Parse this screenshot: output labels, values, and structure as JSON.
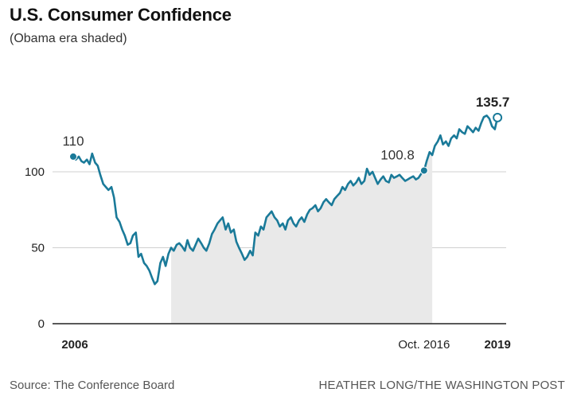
{
  "header": {
    "title": "U.S. Consumer Confidence",
    "subtitle": "(Obama era shaded)"
  },
  "footer": {
    "source": "Source: The Conference Board",
    "credit": "HEATHER LONG/THE WASHINGTON POST"
  },
  "colors": {
    "line": "#1a7a99",
    "shade": "#e9e9e9",
    "grid": "#d0d0d0",
    "axis": "#222222"
  },
  "chart_data": {
    "type": "area",
    "title": "U.S. Consumer Confidence",
    "subtitle": "(Obama era shaded)",
    "xlabel": "",
    "ylabel": "",
    "ylim": [
      0,
      145
    ],
    "xlim": [
      2006.0,
      2019.5
    ],
    "yticks": [
      0,
      50,
      100
    ],
    "xticks": [
      {
        "value": 2006.0,
        "label": "2006",
        "bold": true
      },
      {
        "value": 2016.75,
        "label": "Oct. 2016",
        "bold": false
      },
      {
        "value": 2019.0,
        "label": "2019",
        "bold": true
      }
    ],
    "grid": true,
    "shaded_range": [
      2009.0,
      2017.0
    ],
    "annotations": [
      {
        "x": 2006.0,
        "y": 110,
        "label": "110",
        "marker": "filled",
        "bold": false,
        "pos": "above"
      },
      {
        "x": 2016.75,
        "y": 100.8,
        "label": "100.8",
        "marker": "filled",
        "bold": false,
        "pos": "left"
      },
      {
        "x": 2019.0,
        "y": 135.7,
        "label": "135.7",
        "marker": "hollow",
        "bold": true,
        "pos": "above"
      }
    ],
    "series": [
      {
        "x": [
          2006.0,
          2006.08,
          2006.17,
          2006.25,
          2006.33,
          2006.42,
          2006.5,
          2006.58,
          2006.67,
          2006.75,
          2006.83,
          2006.92,
          2007.0,
          2007.08,
          2007.17,
          2007.25,
          2007.33,
          2007.42,
          2007.5,
          2007.58,
          2007.67,
          2007.75,
          2007.83,
          2007.92,
          2008.0,
          2008.08,
          2008.17,
          2008.25,
          2008.33,
          2008.42,
          2008.5,
          2008.58,
          2008.67,
          2008.75,
          2008.83,
          2008.92,
          2009.0,
          2009.08,
          2009.17,
          2009.25,
          2009.33,
          2009.42,
          2009.5,
          2009.58,
          2009.67,
          2009.75,
          2009.83,
          2009.92,
          2010.0,
          2010.08,
          2010.17,
          2010.25,
          2010.33,
          2010.42,
          2010.5,
          2010.58,
          2010.67,
          2010.75,
          2010.83,
          2010.92,
          2011.0,
          2011.08,
          2011.17,
          2011.25,
          2011.33,
          2011.42,
          2011.5,
          2011.58,
          2011.67,
          2011.75,
          2011.83,
          2011.92,
          2012.0,
          2012.08,
          2012.17,
          2012.25,
          2012.33,
          2012.42,
          2012.5,
          2012.58,
          2012.67,
          2012.75,
          2012.83,
          2012.92,
          2013.0,
          2013.08,
          2013.17,
          2013.25,
          2013.33,
          2013.42,
          2013.5,
          2013.58,
          2013.67,
          2013.75,
          2013.83,
          2013.92,
          2014.0,
          2014.08,
          2014.17,
          2014.25,
          2014.33,
          2014.42,
          2014.5,
          2014.58,
          2014.67,
          2014.75,
          2014.83,
          2014.92,
          2015.0,
          2015.08,
          2015.17,
          2015.25,
          2015.33,
          2015.42,
          2015.5,
          2015.58,
          2015.67,
          2015.75,
          2015.83,
          2015.92,
          2016.0,
          2016.08,
          2016.17,
          2016.25,
          2016.33,
          2016.42,
          2016.5,
          2016.58,
          2016.67,
          2016.75,
          2016.83,
          2016.92,
          2017.0,
          2017.08,
          2017.17,
          2017.25,
          2017.33,
          2017.42,
          2017.5,
          2017.58,
          2017.67,
          2017.75,
          2017.83,
          2017.92,
          2018.0,
          2018.08,
          2018.17,
          2018.25,
          2018.33,
          2018.42,
          2018.5,
          2018.58,
          2018.67,
          2018.75,
          2018.83,
          2018.92,
          2019.0
        ],
        "values": [
          110,
          108,
          110,
          107,
          106,
          108,
          105,
          112,
          106,
          104,
          98,
          92,
          90,
          88,
          90,
          83,
          70,
          67,
          62,
          58,
          52,
          53,
          58,
          60,
          44,
          46,
          40,
          38,
          35,
          30,
          26,
          28,
          40,
          44,
          38,
          46,
          50,
          48,
          52,
          53,
          51,
          48,
          55,
          50,
          48,
          52,
          56,
          53,
          50,
          48,
          53,
          59,
          62,
          66,
          68,
          70,
          62,
          66,
          60,
          62,
          54,
          50,
          46,
          42,
          44,
          48,
          45,
          60,
          58,
          64,
          62,
          70,
          72,
          74,
          70,
          68,
          64,
          66,
          62,
          68,
          70,
          66,
          64,
          68,
          70,
          67,
          72,
          75,
          76,
          78,
          74,
          76,
          80,
          82,
          80,
          78,
          82,
          84,
          86,
          90,
          88,
          92,
          94,
          91,
          93,
          96,
          92,
          94,
          102,
          98,
          100,
          96,
          92,
          95,
          97,
          94,
          93,
          98,
          96,
          97,
          98,
          96,
          94,
          95,
          96,
          97,
          95,
          96,
          99,
          100.8,
          107,
          113,
          111,
          117,
          120,
          124,
          118,
          120,
          117,
          122,
          124,
          122,
          128,
          126,
          125,
          130,
          128,
          126,
          129,
          127,
          132,
          136,
          137,
          135,
          130,
          128,
          135.7
        ]
      }
    ]
  }
}
